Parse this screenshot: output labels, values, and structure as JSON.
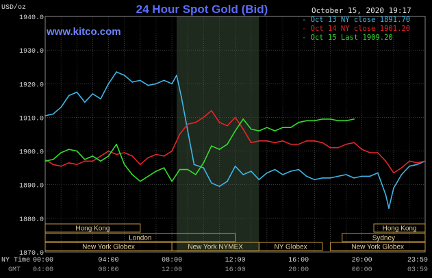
{
  "header": {
    "title": "24 Hour Spot Gold (Bid)",
    "website": "www.kitco.com",
    "timestamp": "October 15, 2020 19:17",
    "unit": "USD/oz"
  },
  "colors": {
    "background": "#000000",
    "plot_background": "#000000",
    "highlight_band": "#1e2a1e",
    "grid": "#5a5a5a",
    "title": "#5b6dff",
    "website": "#6f86ff",
    "axis_text": "#d8d8d8",
    "gmt_text": "#9a9a9a",
    "session_box": "#c89a3c",
    "session_text": "#e8d29a",
    "oct13": "#3fb6e8",
    "oct14": "#e8252a",
    "oct15": "#35dd2c"
  },
  "legend": [
    {
      "label": "Oct 13 NY close 1891.70",
      "color": "#3fb6e8"
    },
    {
      "label": "Oct 14 NY close 1901.20",
      "color": "#e8252a"
    },
    {
      "label": "Oct 15 Last 1909.20",
      "color": "#35dd2c"
    }
  ],
  "sessions": [
    {
      "label": "Hong Kong",
      "start": 0,
      "end": 6
    },
    {
      "label": "London",
      "start": 0,
      "end": 12
    },
    {
      "label": "New York Globex",
      "start": 0,
      "end": 8
    },
    {
      "label": "New York NYMEX",
      "start": 8,
      "end": 13.5
    },
    {
      "label": "NY Globex",
      "start": 13.5,
      "end": 17.5
    },
    {
      "label": "Hong Kong",
      "start": 20.75,
      "end": 23.99
    },
    {
      "label": "Sydney",
      "start": 18.75,
      "end": 23.99
    },
    {
      "label": "New York Globex",
      "start": 18,
      "end": 23.99
    }
  ],
  "row_labels": {
    "ny": "NY Time",
    "gmt": "GMT"
  },
  "chart_data": {
    "type": "line",
    "title": "24 Hour Spot Gold (Bid)",
    "ylabel": "USD/oz",
    "ylim": [
      1870,
      1940
    ],
    "xlim": [
      0,
      23.99
    ],
    "highlight_range": [
      8.3,
      13.5
    ],
    "yticks": [
      "1870.0",
      "1880.0",
      "1890.0",
      "1900.0",
      "1910.0",
      "1920.0",
      "1930.0",
      "1940.0"
    ],
    "ytick_values": [
      1870,
      1880,
      1890,
      1900,
      1910,
      1920,
      1930,
      1940
    ],
    "xticks": [
      "00:00",
      "04:00",
      "08:00",
      "12:00",
      "16:00",
      "20:00",
      "23:59"
    ],
    "xtick_values": [
      0,
      4,
      8,
      12,
      16,
      20,
      23.99
    ],
    "gmt_ticks": [
      "04:00",
      "08:00",
      "12:00",
      "16:00",
      "20:00",
      "00:00",
      "03:59"
    ],
    "grid": true,
    "series": [
      {
        "name": "Oct 13 NY close 1891.70",
        "color": "#3fb6e8",
        "x": [
          0,
          0.5,
          1,
          1.5,
          2,
          2.5,
          3,
          3.5,
          4,
          4.5,
          5,
          5.5,
          6,
          6.5,
          7,
          7.5,
          8,
          8.3,
          8.6,
          9,
          9.4,
          10,
          10.5,
          11,
          11.5,
          12,
          12.5,
          13,
          13.5,
          14,
          14.5,
          15,
          15.5,
          16,
          16.5,
          17,
          17.5,
          18,
          18.5,
          19,
          19.5,
          20,
          20.5,
          21,
          21.5,
          21.7,
          22,
          22.5,
          23,
          23.5,
          23.99
        ],
        "values": [
          1910.5,
          1911,
          1913,
          1916.5,
          1917.5,
          1914.5,
          1917,
          1915.5,
          1920,
          1923.5,
          1922.5,
          1920.5,
          1921,
          1919.5,
          1920,
          1921,
          1920,
          1922.5,
          1916,
          1906,
          1896,
          1895,
          1890.5,
          1889.5,
          1891,
          1895.5,
          1893,
          1894,
          1891.5,
          1893.5,
          1894.5,
          1893,
          1894,
          1894.5,
          1892.5,
          1891.5,
          1892,
          1892,
          1892.5,
          1893,
          1892,
          1892.5,
          1892.5,
          1893.5,
          1887,
          1883,
          1889,
          1893,
          1895.5,
          1896,
          1897
        ]
      },
      {
        "name": "Oct 14 NY close 1901.20",
        "color": "#e8252a",
        "x": [
          0,
          0.5,
          1,
          1.5,
          2,
          2.5,
          3,
          3.5,
          4,
          4.5,
          5,
          5.5,
          6,
          6.5,
          7,
          7.5,
          8,
          8.5,
          9,
          9.5,
          10,
          10.5,
          11,
          11.5,
          12,
          12.5,
          13,
          13.5,
          14,
          14.5,
          15,
          15.5,
          16,
          16.5,
          17,
          17.5,
          18,
          18.5,
          19,
          19.5,
          20,
          20.5,
          21,
          21.5,
          22,
          22.5,
          23,
          23.5,
          23.99
        ],
        "values": [
          1897.5,
          1896,
          1895.5,
          1896.5,
          1896,
          1897,
          1897,
          1898.5,
          1900,
          1899,
          1899.5,
          1898.5,
          1896,
          1898,
          1899,
          1898.5,
          1900,
          1905,
          1908,
          1908.5,
          1910,
          1912,
          1908.5,
          1907.5,
          1910,
          1906.5,
          1902.5,
          1903,
          1903,
          1902.5,
          1903,
          1902,
          1902,
          1903,
          1903,
          1902.5,
          1901,
          1901,
          1902,
          1902.5,
          1900.5,
          1899.5,
          1899.5,
          1897,
          1893.5,
          1895,
          1897,
          1896.5,
          1897
        ]
      },
      {
        "name": "Oct 15 Last 1909.20",
        "color": "#35dd2c",
        "x": [
          0,
          0.5,
          1,
          1.5,
          2,
          2.5,
          3,
          3.5,
          4,
          4.5,
          5,
          5.5,
          6,
          6.5,
          7,
          7.5,
          8,
          8.5,
          9,
          9.5,
          10,
          10.5,
          11,
          11.5,
          12,
          12.5,
          13,
          13.5,
          14,
          14.5,
          15,
          15.5,
          16,
          16.5,
          17,
          17.5,
          18,
          18.5,
          19,
          19.5
        ],
        "values": [
          1897,
          1897.5,
          1899.5,
          1900.5,
          1900,
          1897.5,
          1898.5,
          1897,
          1898.5,
          1902,
          1896,
          1893,
          1891,
          1892.5,
          1894,
          1895,
          1891,
          1894.5,
          1894.5,
          1893,
          1896.5,
          1901.5,
          1900.5,
          1902,
          1906,
          1909.5,
          1906.5,
          1906,
          1907,
          1906,
          1907,
          1907,
          1908.5,
          1909,
          1909,
          1909.5,
          1909.5,
          1909,
          1909,
          1909.5
        ]
      }
    ]
  }
}
